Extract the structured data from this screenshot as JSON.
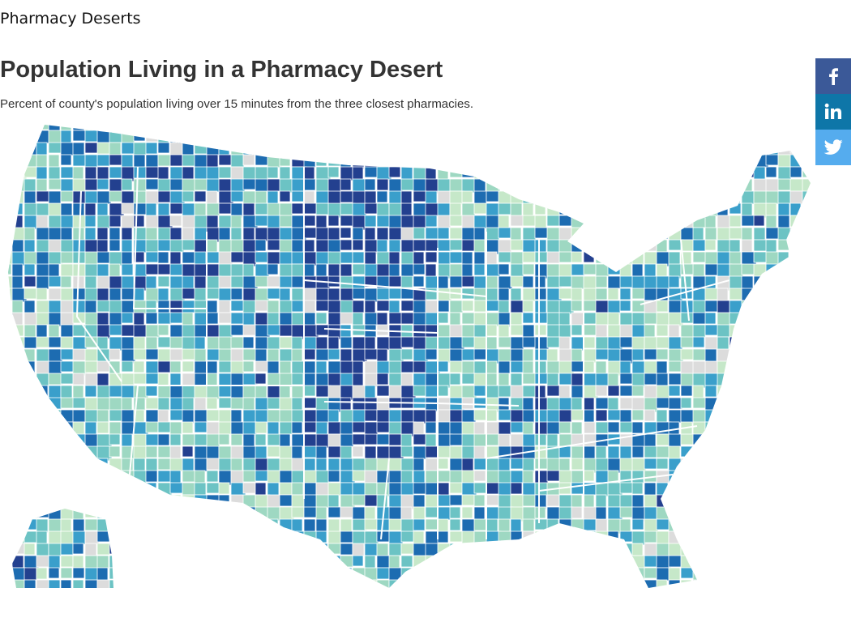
{
  "page": {
    "label": "Pharmacy Deserts",
    "title": "Population Living in a Pharmacy Desert",
    "subtitle": "Percent of county's population living over 15 minutes from the three closest pharmacies."
  },
  "share": [
    {
      "name": "facebook",
      "icon": "facebook-icon",
      "color": "#3b5998"
    },
    {
      "name": "linkedin",
      "icon": "linkedin-icon",
      "color": "#0e76a8"
    },
    {
      "name": "twitter",
      "icon": "twitter-icon",
      "color": "#55acee"
    }
  ],
  "map": {
    "palette": [
      "#c6e8c9",
      "#9ed8c2",
      "#6cc3c4",
      "#3a9fcb",
      "#1d6cb1",
      "#23408f"
    ],
    "no_data_color": "#dcdcdc",
    "border_color": "#ffffff"
  }
}
